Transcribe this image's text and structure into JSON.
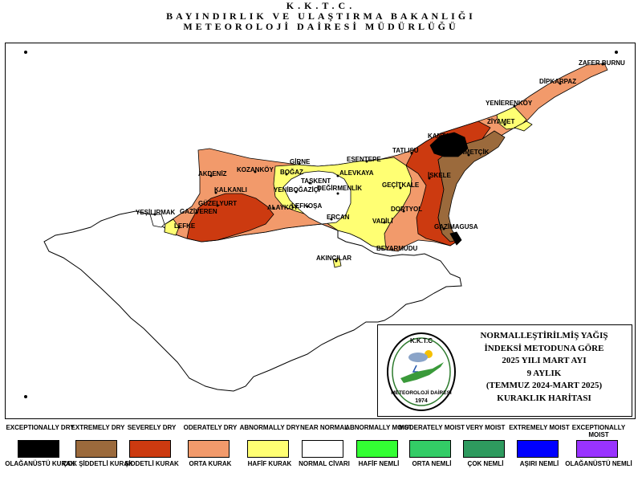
{
  "header": {
    "line1": "K.K.T.C.",
    "line2": "BAYINDIRLIK VE ULAŞTIRMA BAKANLIĞI",
    "line3": "METEOROLOJİ  DAİRESİ MÜDÜRLÜĞÜ"
  },
  "map": {
    "places": [
      "ZAFER BURNU",
      "DİPKARPAZ",
      "YENİERENKÖY",
      "ZİYAMET",
      "KANTARA",
      "TATLISU",
      "MEHMETÇİK",
      "İSKELE",
      "GEÇİTKALE",
      "ESENTEPE",
      "GİRNE",
      "BOĞAZ",
      "ALEVKAYA",
      "TAŞKENT",
      "KOZANKÖY",
      "AKDENİZ",
      "KALKANLI",
      "GÜZELYURT",
      "GAZİVEREN",
      "YEŞİLIRMAK",
      "LEFKE",
      "ALAYKÖY",
      "YENİBOĞAZİÇİ",
      "DEĞİRMENLİK",
      "LEFKOŞA",
      "ERCAN",
      "DORTYOL",
      "VADİLİ",
      "GAZİMAGUSA",
      "BEYARMUDU",
      "AKINCILAR"
    ],
    "region_colors": {
      "exceptional_dry": "#000000",
      "extreme_dry": "#9b6a3c",
      "severe_dry": "#cc3a10",
      "moderate_dry": "#f29a6b",
      "abnormal_dry": "#ffff73",
      "near_normal": "#ffffff"
    }
  },
  "info": {
    "line1": "NORMALLEŞTİRİLMİŞ YAĞIŞ",
    "line2": "İNDEKSİ METODUNA GÖRE",
    "line3": "2025 YILI MART AYI",
    "line4": "9 AYLIK",
    "line5": "(TEMMUZ 2024-MART 2025)",
    "line6": "KURAKLIK HARİTASI",
    "logo_top": "K.K.T.C",
    "logo_bottom": "METEOROLOJİ DAİRESİ",
    "logo_year": "1974"
  },
  "legend": [
    {
      "en": "EXCEPTIONALLY DRY",
      "tr": "OLAĞANÜSTÜ KURAK",
      "color": "#000000"
    },
    {
      "en": "EXTREMELY DRY",
      "tr": "ÇOK ŞİDDETLİ KURAK",
      "color": "#9b6a3c"
    },
    {
      "en": "SEVERELY DRY",
      "tr": "ŞİDDETLİ KURAK",
      "color": "#cc3a10"
    },
    {
      "en": "ODERATELY DRY",
      "tr": "ORTA KURAK",
      "color": "#f29a6b"
    },
    {
      "en": "ABNORMALLY DRY",
      "tr": "HAFİF KURAK",
      "color": "#ffff73"
    },
    {
      "en": "NEAR NORMAL",
      "tr": "NORMAL CİVARI",
      "color": "#ffffff"
    },
    {
      "en": "ABNORMALLY MOIST",
      "tr": "HAFİF NEMLİ",
      "color": "#33ff33"
    },
    {
      "en": "MODERATELY MOIST",
      "tr": "ORTA NEMLİ",
      "color": "#33cc66"
    },
    {
      "en": "VERY MOIST",
      "tr": "ÇOK NEMLİ",
      "color": "#2e9a5e"
    },
    {
      "en": "EXTREMELY MOIST",
      "tr": "AŞIRI NEMLİ",
      "color": "#0000ff"
    },
    {
      "en": "EXCEPTIONALLY MOIST",
      "tr": "OLAĞANÜSTÜ NEMLİ",
      "color": "#9933ff"
    }
  ]
}
